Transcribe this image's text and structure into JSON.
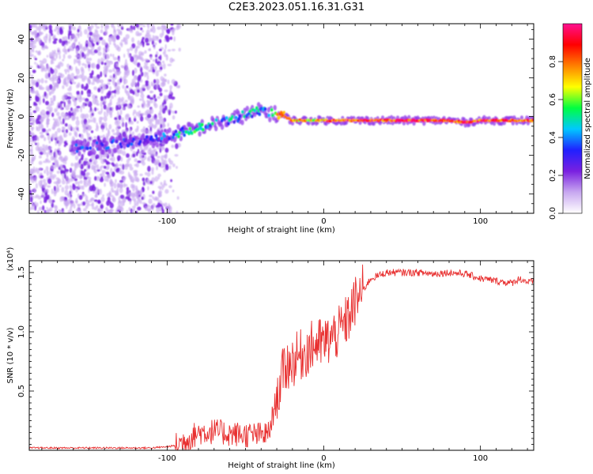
{
  "figure": {
    "title": "C2E3.2023.051.16.31.G31"
  },
  "chart_data": [
    {
      "type": "heatmap",
      "xlabel": "Height of straight line (km)",
      "ylabel": "Frequency (Hz)",
      "xlim": [
        -188,
        134
      ],
      "ylim": [
        -50,
        48
      ],
      "x_ticks": [
        -100,
        0,
        100
      ],
      "y_ticks": [
        -40,
        -20,
        0,
        20,
        40
      ],
      "colorbar": {
        "label": "Normalized spectral amplitude",
        "range": [
          0,
          1
        ],
        "ticks": [
          "0.0",
          "0.2",
          "0.4",
          "0.6",
          "0.8"
        ],
        "colormap": [
          "#ffffff",
          "#c8a8f0",
          "#7a20e0",
          "#2020ff",
          "#00c8ff",
          "#00ff40",
          "#ffff00",
          "#ff8000",
          "#ff0000",
          "#ff1090"
        ]
      },
      "ridge": {
        "x": [
          -155,
          -130,
          -110,
          -100,
          -90,
          -80,
          -70,
          -60,
          -50,
          -40,
          -35,
          -30,
          -25,
          -20,
          -10,
          0,
          10,
          30,
          50,
          80,
          90,
          100,
          134
        ],
        "frequency": [
          -16,
          -14,
          -12,
          -10,
          -8,
          -6,
          -4,
          -2,
          1,
          3,
          2,
          1,
          0,
          -2,
          -2,
          -2,
          -2,
          -2,
          -2,
          -2,
          -3,
          -2,
          -2
        ]
      }
    },
    {
      "type": "line",
      "xlabel": "Height of straight line (km)",
      "ylabel": "SNR (10 * v/v)",
      "y_multiplier": "(x10⁴)",
      "xlim": [
        -188,
        134
      ],
      "ylim": [
        0,
        1.6
      ],
      "x_ticks": [
        -100,
        0,
        100
      ],
      "y_ticks": [
        "0.5",
        "1.0",
        "1.5"
      ],
      "series": [
        {
          "color": "#e83030",
          "x": [
            -188,
            -150,
            -110,
            -100,
            -95,
            -90,
            -80,
            -70,
            -60,
            -50,
            -40,
            -35,
            -30,
            -25,
            -20,
            -15,
            -10,
            -5,
            0,
            5,
            10,
            15,
            20,
            25,
            30,
            40,
            50,
            60,
            70,
            80,
            90,
            100,
            110,
            120,
            125,
            130,
            134
          ],
          "y": [
            0.02,
            0.02,
            0.02,
            0.03,
            0.04,
            0.07,
            0.15,
            0.16,
            0.14,
            0.13,
            0.13,
            0.14,
            0.45,
            0.7,
            0.75,
            0.8,
            0.85,
            0.9,
            0.9,
            0.95,
            1.0,
            1.1,
            1.25,
            1.35,
            1.45,
            1.5,
            1.5,
            1.5,
            1.49,
            1.5,
            1.49,
            1.45,
            1.43,
            1.41,
            1.45,
            1.42,
            1.42
          ]
        }
      ]
    }
  ]
}
